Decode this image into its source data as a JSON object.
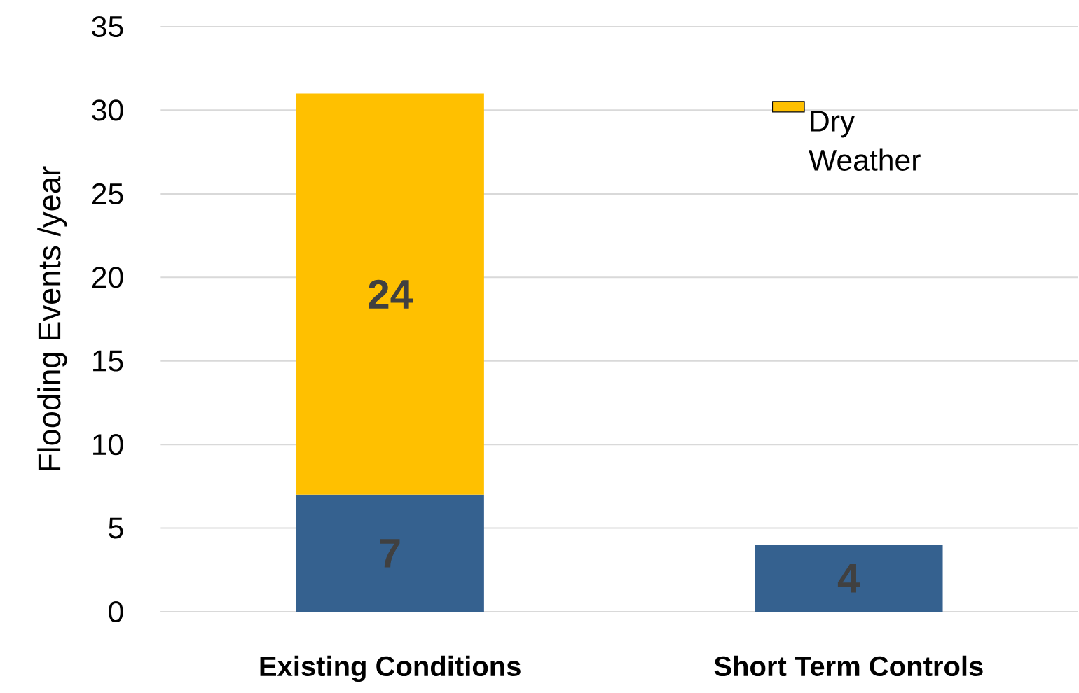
{
  "chart_data": {
    "type": "bar",
    "stacked": true,
    "ylabel": "Flooding Events /year",
    "categories": [
      "Existing Conditions",
      "Short Term Controls"
    ],
    "series": [
      {
        "color": "#35618f",
        "values": [
          7,
          4
        ]
      },
      {
        "name": "Dry Weather",
        "color": "#ffc000",
        "values": [
          24,
          null
        ]
      }
    ],
    "ylim": [
      0,
      35
    ],
    "yticks": [
      0,
      5,
      10,
      15,
      20,
      25,
      30,
      35
    ],
    "grid": "y",
    "legend": "top right",
    "data_labels": true
  }
}
